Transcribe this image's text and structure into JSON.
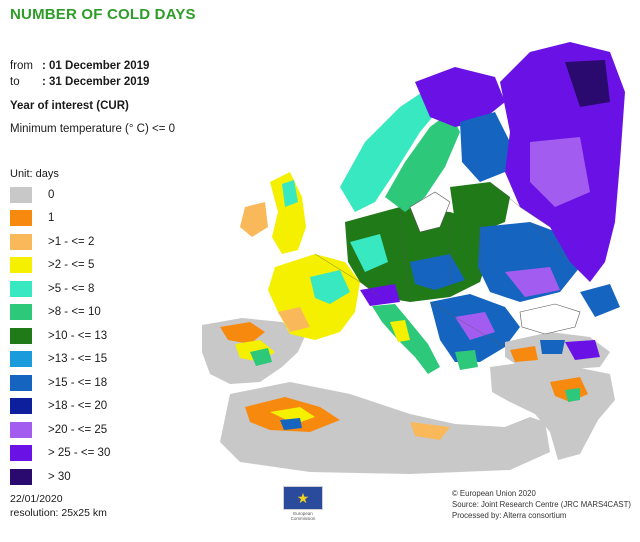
{
  "header": {
    "title": "NUMBER OF COLD DAYS",
    "from_label": "from",
    "from_value": ": 01 December 2019",
    "to_label": "to",
    "to_value": ": 31 December 2019",
    "year_of_interest": "Year of interest (CUR)",
    "min_temp": "Minimum temperature (° C) <= 0"
  },
  "legend": {
    "unit": "Unit: days",
    "items": [
      {
        "label": "0",
        "color": "#c8c8c8"
      },
      {
        "label": "1",
        "color": "#f7890f"
      },
      {
        "label": ">1 - <= 2",
        "color": "#f9b95a"
      },
      {
        "label": ">2 - <= 5",
        "color": "#f5f000"
      },
      {
        "label": ">5 - <= 8",
        "color": "#38e8c0"
      },
      {
        "label": ">8 - <= 10",
        "color": "#2ec87a"
      },
      {
        "label": ">10 - <= 13",
        "color": "#1f7a17"
      },
      {
        "label": ">13 - <= 15",
        "color": "#1a9bdc"
      },
      {
        "label": ">15 - <= 18",
        "color": "#1565c0"
      },
      {
        "label": ">18 - <= 20",
        "color": "#0e1f9e"
      },
      {
        "label": ">20 - <= 25",
        "color": "#a35cf0"
      },
      {
        "label": "> 25 - <= 30",
        "color": "#6a12e6"
      },
      {
        "label": "> 30",
        "color": "#2a0a6e"
      }
    ]
  },
  "footer": {
    "date": "22/01/2020",
    "resolution": "resolution: 25x25 km",
    "logo_caption": "European Commission",
    "credit_1": "© European Union 2020",
    "credit_2": "Source: Joint Research Centre (JRC MARS4CAST)",
    "credit_3": "Processed by: Alterra consortium"
  },
  "map": {
    "colors": {
      "sea": "#ffffff",
      "outside": "#c8c8c8",
      "borders": "#555555"
    }
  }
}
